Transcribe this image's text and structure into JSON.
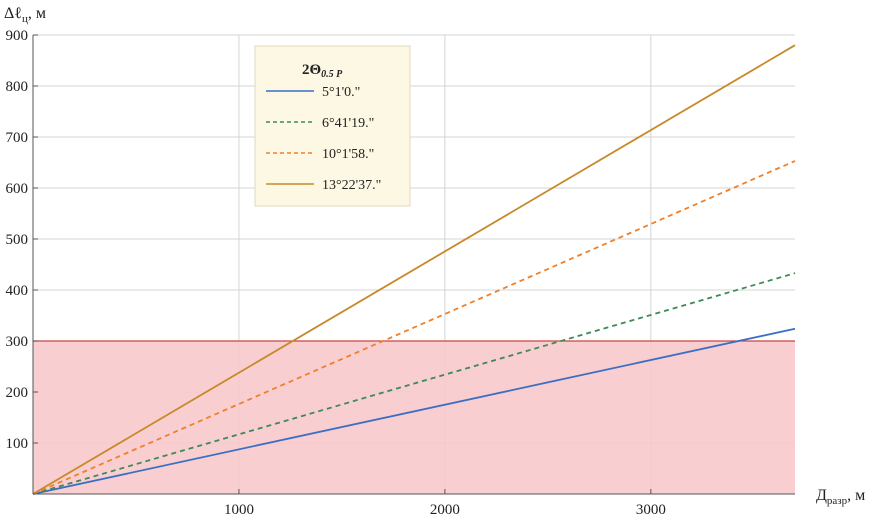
{
  "chart_data": {
    "type": "line",
    "title": "",
    "xlabel": {
      "main": "Д",
      "sub": "разр",
      "unit": ", м"
    },
    "ylabel": {
      "main": "Δℓ",
      "sub": "ц",
      "unit": ", м"
    },
    "xlim": [
      0,
      3700
    ],
    "ylim": [
      0,
      900
    ],
    "x_ticks": [
      1000,
      2000,
      3000
    ],
    "y_ticks": [
      100,
      200,
      300,
      400,
      500,
      600,
      700,
      800,
      900
    ],
    "grid": true,
    "legend": {
      "title": {
        "main": "2Θ",
        "sub": "0.5 P"
      },
      "placement": "top-center"
    },
    "series": [
      {
        "name": "5°1'0.\"",
        "x": [
          0,
          3700
        ],
        "y": [
          0,
          324
        ],
        "color": "#3a6fc4",
        "style": "solid"
      },
      {
        "name": "6°41'19.\"",
        "x": [
          0,
          3700
        ],
        "y": [
          0,
          433
        ],
        "color": "#3c8a56",
        "style": "dashed"
      },
      {
        "name": "10°1'58.\"",
        "x": [
          0,
          3700
        ],
        "y": [
          0,
          653
        ],
        "color": "#f07f2a",
        "style": "dashed"
      },
      {
        "name": "13°22'37.\"",
        "x": [
          0,
          3700
        ],
        "y": [
          0,
          880
        ],
        "color": "#c8892a",
        "style": "solid"
      }
    ],
    "threshold_region": {
      "y_from": 0,
      "y_to": 300,
      "fill": "#f7c9cc",
      "line_color": "#cc4444"
    }
  }
}
